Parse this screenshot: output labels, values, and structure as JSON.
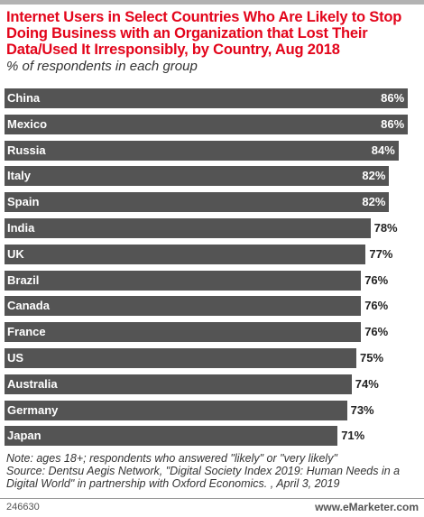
{
  "title": "Internet Users in Select Countries Who Are Likely to Stop Doing Business with an Organization that Lost Their Data/Used It Irresponsibly, by Country, Aug 2018",
  "subtitle": "% of respondents in each group",
  "note": "Note: ages 18+; respondents who answered \"likely\" or \"very likely\"",
  "source": "Source: Dentsu Aegis Network, \"Digital Society Index 2019: Human Needs in a Digital World\" in partnership with Oxford Economics. , April 3, 2019",
  "chart_id": "246630",
  "brand": "www.eMarketer.com",
  "colors": {
    "title": "#e3051b",
    "bar": "#545454"
  },
  "chart_data": {
    "type": "bar",
    "orientation": "horizontal",
    "categories": [
      "China",
      "Mexico",
      "Russia",
      "Italy",
      "Spain",
      "India",
      "UK",
      "Brazil",
      "Canada",
      "France",
      "US",
      "Australia",
      "Germany",
      "Japan"
    ],
    "values": [
      86,
      86,
      84,
      82,
      82,
      78,
      77,
      76,
      76,
      76,
      75,
      74,
      73,
      71
    ],
    "value_labels": [
      "86%",
      "86%",
      "84%",
      "82%",
      "82%",
      "78%",
      "77%",
      "76%",
      "76%",
      "76%",
      "75%",
      "74%",
      "73%",
      "71%"
    ],
    "grid": false
  }
}
